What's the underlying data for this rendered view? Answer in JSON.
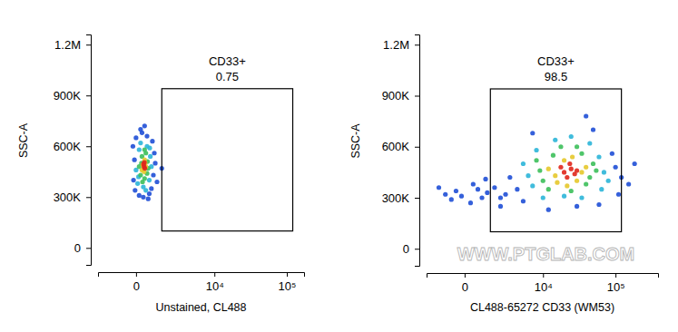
{
  "chart_data": [
    {
      "type": "scatter",
      "log": "x",
      "marker": "circle",
      "x_label": "Unstained, CL488",
      "y_label": "SSC-A",
      "xlim": [
        -2200,
        170000
      ],
      "xticks": [
        0,
        {
          "value": 10000,
          "label": "10⁴"
        },
        {
          "value": 100000,
          "label": "10⁵"
        }
      ],
      "ylim": [
        -100000,
        1260000
      ],
      "yticks": [
        0,
        {
          "value": 300000,
          "label": "300K"
        },
        {
          "value": 600000,
          "label": "600K"
        },
        {
          "value": 900000,
          "label": "900K"
        },
        {
          "value": 1200000,
          "label": "1.2M"
        }
      ],
      "gate": {
        "label": "CD33+",
        "value": 0.75,
        "x": [
          1200,
          120000
        ],
        "y": [
          100000,
          940000
        ]
      },
      "series": [
        {
          "color": "#1f4fd6",
          "x": [
            -80,
            700,
            -50,
            750,
            100,
            500,
            200,
            400,
            -100,
            650,
            300,
            250,
            800,
            0,
            600,
            1200,
            -30,
            150,
            450,
            900
          ],
          "values": [
            400000,
            430000,
            520000,
            560000,
            310000,
            320000,
            680000,
            660000,
            600000,
            630000,
            720000,
            300000,
            500000,
            650000,
            350000,
            470000,
            340000,
            700000,
            290000,
            390000
          ]
        },
        {
          "color": "#2bb5d8",
          "x": [
            50,
            500,
            100,
            550,
            250,
            400,
            0,
            600,
            150,
            350,
            80,
            520
          ],
          "values": [
            380000,
            400000,
            580000,
            540000,
            360000,
            600000,
            460000,
            480000,
            620000,
            340000,
            420000,
            590000
          ]
        },
        {
          "color": "#3cbf5a",
          "x": [
            150,
            400,
            200,
            420,
            300,
            350,
            180,
            450,
            100,
            300,
            220
          ],
          "values": [
            430000,
            440000,
            540000,
            510000,
            410000,
            560000,
            500000,
            470000,
            480000,
            580000,
            390000
          ]
        },
        {
          "color": "#e5c82b",
          "x": [
            250,
            320,
            280,
            350,
            300,
            230,
            200
          ],
          "values": [
            470000,
            500000,
            450000,
            480000,
            520000,
            490000,
            460000
          ]
        },
        {
          "color": "#e0261b",
          "x": [
            280,
            260,
            310,
            290
          ],
          "values": [
            480000,
            495000,
            470000,
            505000
          ]
        }
      ]
    },
    {
      "type": "scatter",
      "log": "x",
      "marker": "circle",
      "x_label": "CL488-65272 CD33 (WM53)",
      "y_label": "SSC-A",
      "annotations": [
        "WWW.PTGLAB.COM"
      ],
      "xlim": [
        -2200,
        370000
      ],
      "xticks": [
        0,
        {
          "value": 10000,
          "label": "10⁴"
        },
        {
          "value": 100000,
          "label": "10⁵"
        }
      ],
      "ylim": [
        -100000,
        1260000
      ],
      "yticks": [
        0,
        {
          "value": 300000,
          "label": "300K"
        },
        {
          "value": 600000,
          "label": "600K"
        },
        {
          "value": 900000,
          "label": "900K"
        },
        {
          "value": 1200000,
          "label": "1.2M"
        }
      ],
      "gate": {
        "label": "CD33+",
        "value": 98.5,
        "x": [
          1200,
          120000
        ],
        "y": [
          100000,
          940000
        ]
      },
      "series": [
        {
          "color": "#1f4fd6",
          "x": [
            4000,
            100000,
            3000,
            120000,
            5000,
            2500,
            90000,
            30000,
            12000,
            50000,
            150000,
            40000,
            1500,
            700,
            300,
            -300,
            -800,
            -500,
            200,
            900,
            2000,
            60000,
            7000,
            110000,
            180000,
            -1200,
            500,
            2000,
            1000,
            -100
          ],
          "values": [
            350000,
            480000,
            420000,
            420000,
            280000,
            320000,
            560000,
            250000,
            230000,
            700000,
            380000,
            780000,
            360000,
            300000,
            380000,
            340000,
            320000,
            290000,
            270000,
            410000,
            250000,
            260000,
            680000,
            320000,
            500000,
            360000,
            350000,
            300000,
            330000,
            310000
          ]
        },
        {
          "color": "#2bb5d8",
          "x": [
            6000,
            70000,
            7000,
            60000,
            20000,
            15000,
            45000,
            5000,
            80000,
            10000,
            35000,
            25000,
            65000,
            8000
          ],
          "values": [
            430000,
            450000,
            370000,
            540000,
            310000,
            640000,
            620000,
            500000,
            400000,
            300000,
            300000,
            660000,
            350000,
            580000
          ]
        },
        {
          "color": "#3cbf5a",
          "x": [
            10000,
            45000,
            14000,
            35000,
            9000,
            50000,
            25000,
            18000,
            40000,
            8000,
            30000,
            12000,
            55000
          ],
          "values": [
            400000,
            420000,
            550000,
            560000,
            460000,
            500000,
            340000,
            600000,
            380000,
            520000,
            600000,
            350000,
            460000
          ]
        },
        {
          "color": "#e5c82b",
          "x": [
            15000,
            35000,
            20000,
            30000,
            16000,
            26000,
            40000,
            12000,
            22000
          ],
          "values": [
            430000,
            450000,
            520000,
            400000,
            390000,
            540000,
            480000,
            470000,
            370000
          ]
        },
        {
          "color": "#e0261b",
          "x": [
            20000,
            25000,
            22000,
            28000,
            18000,
            24000,
            30000
          ],
          "values": [
            450000,
            470000,
            420000,
            440000,
            480000,
            500000,
            460000
          ]
        }
      ]
    }
  ]
}
